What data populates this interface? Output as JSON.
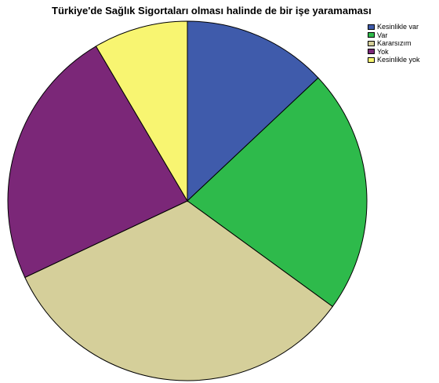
{
  "chart_data": {
    "type": "pie",
    "title": "Türkiye'de Sağlık Sigortaları olması halinde de bir işe yaramaması",
    "legend_position": "top-right",
    "slices": [
      {
        "label": "Kesinlikle var",
        "value": 13.0,
        "color": "#3f5bab"
      },
      {
        "label": "Var",
        "value": 22.0,
        "color": "#2eba4b"
      },
      {
        "label": "Kararsızım",
        "value": 33.0,
        "color": "#d5cf9a"
      },
      {
        "label": "Yok",
        "value": 23.5,
        "color": "#7b2778"
      },
      {
        "label": "Kesinlikle yok",
        "value": 8.5,
        "color": "#f8f571"
      }
    ]
  }
}
